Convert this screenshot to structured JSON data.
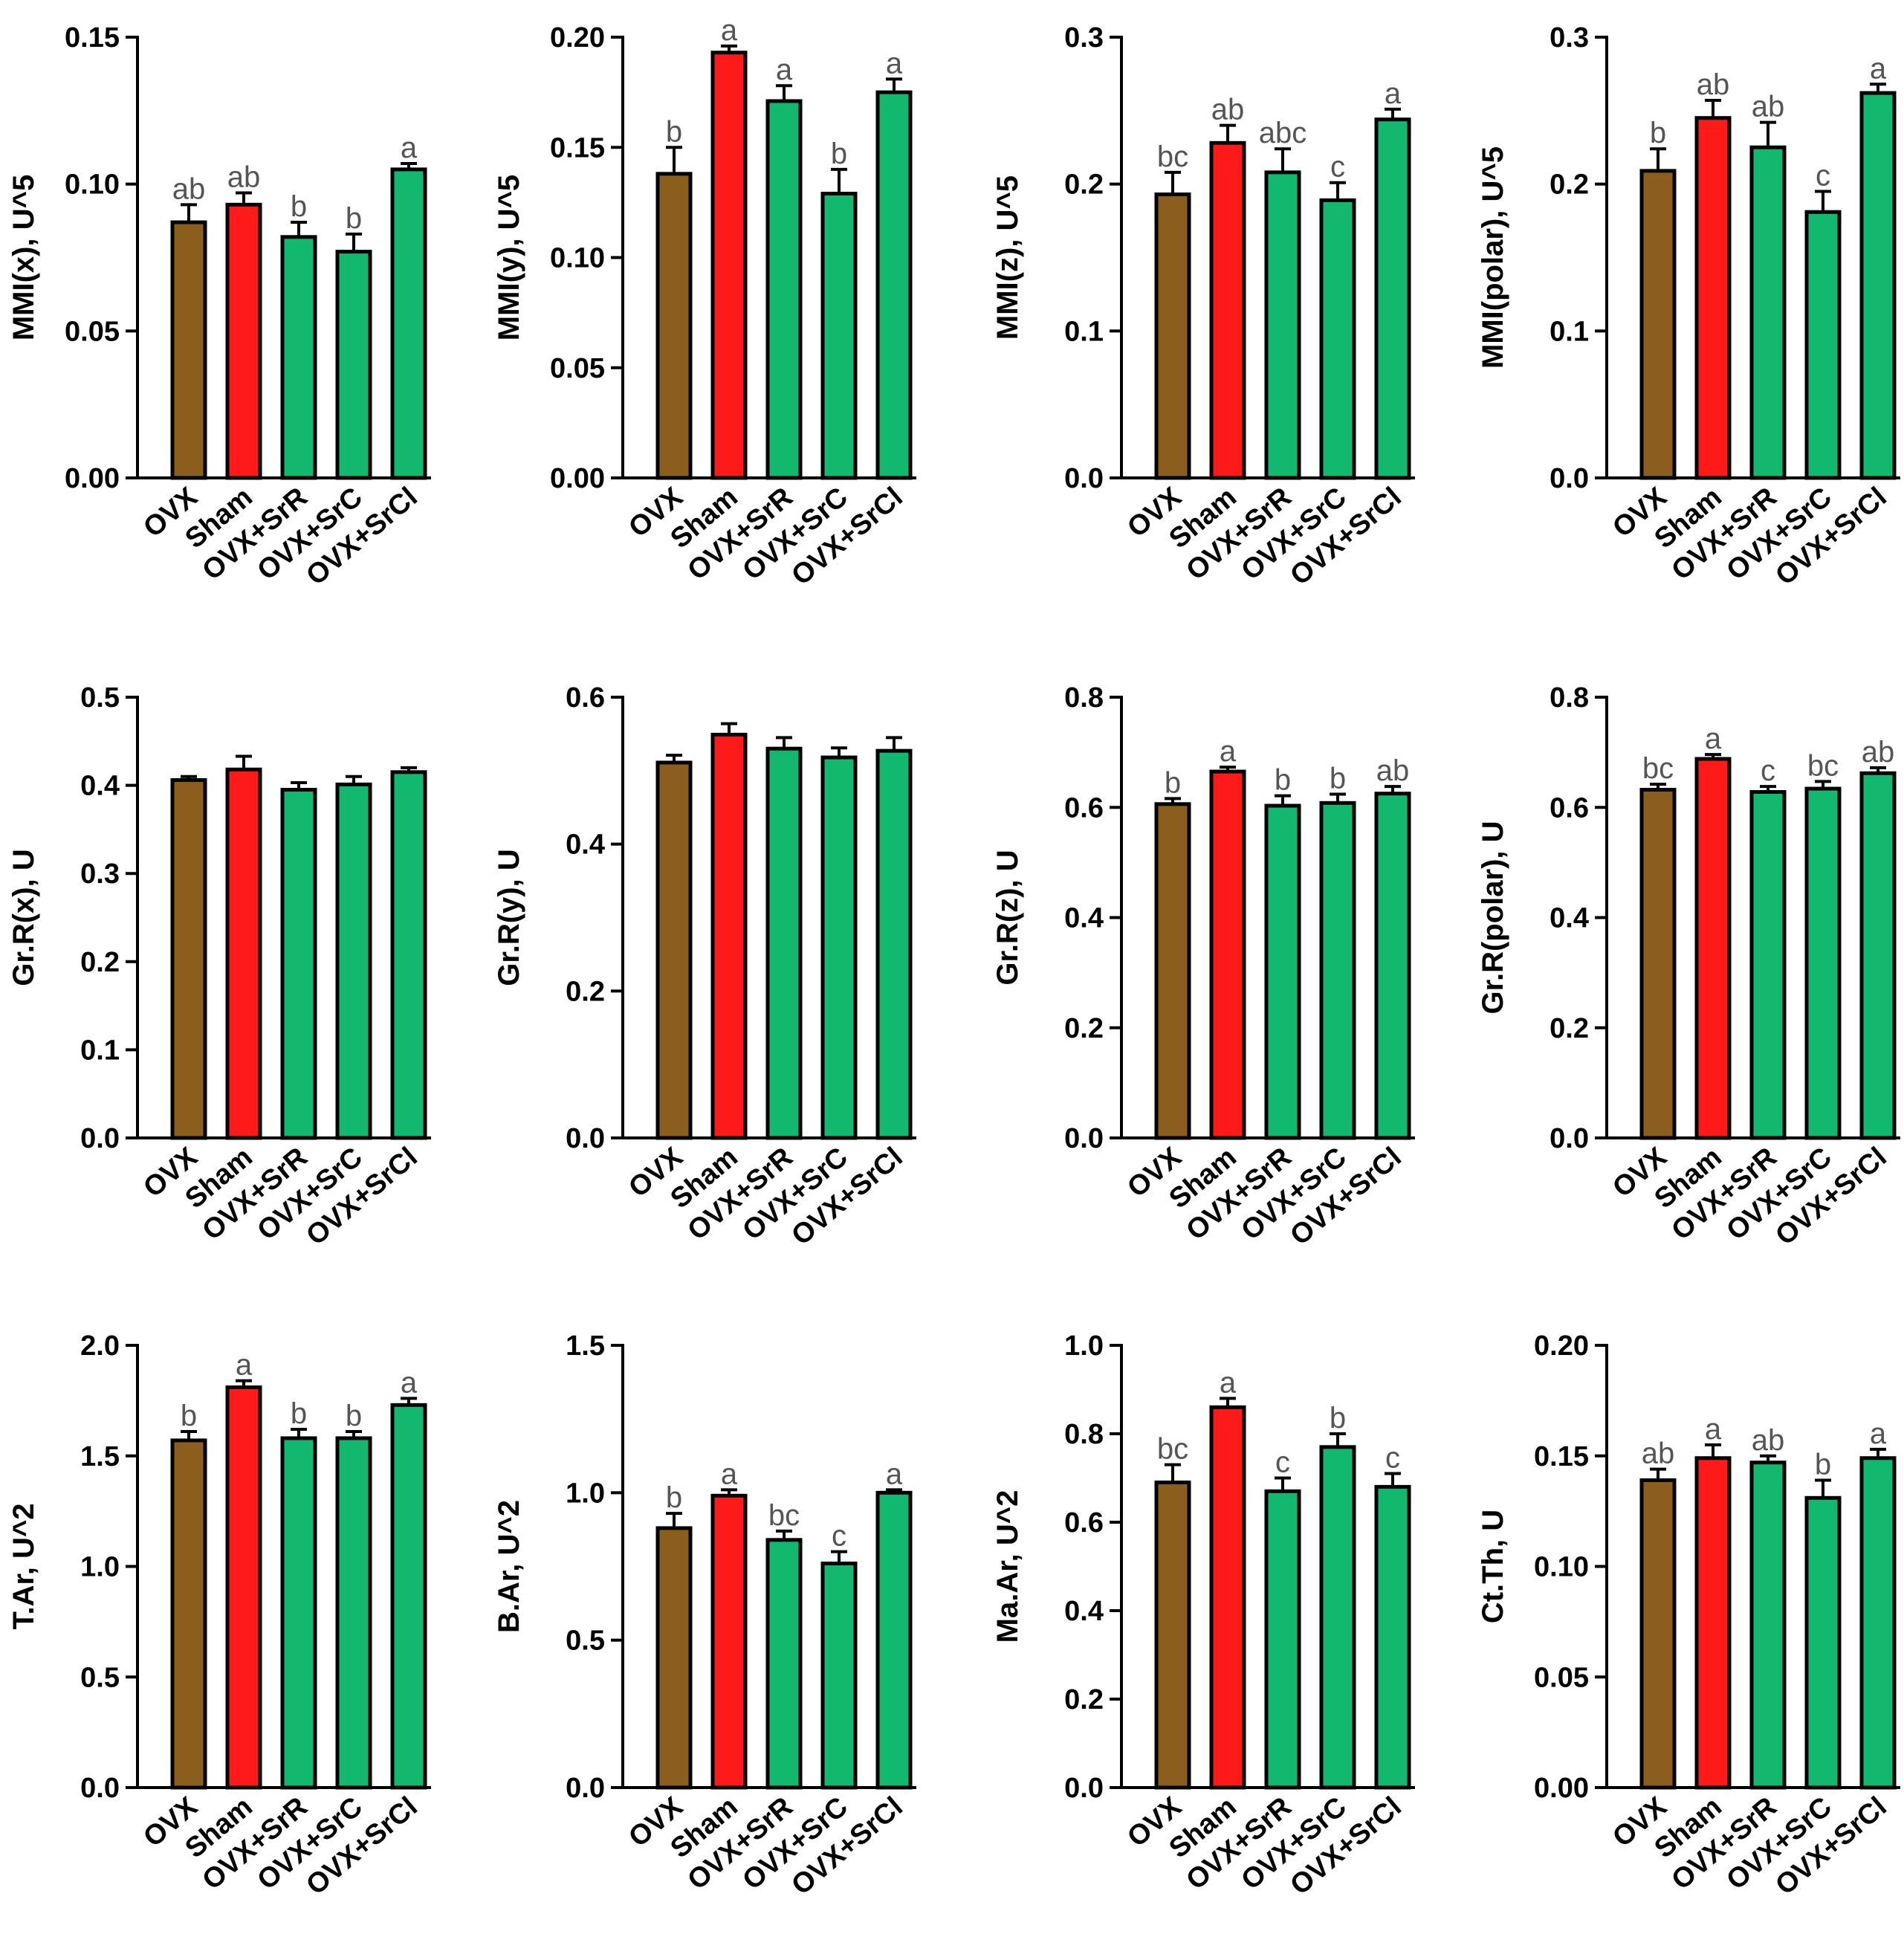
{
  "colors": {
    "OVX": "#8B5E1E",
    "Sham": "#FF1A1A",
    "green": "#12B86E",
    "axis": "#000000",
    "letter": "#555555"
  },
  "chart_data": [
    {
      "type": "bar",
      "ylabel": "MMI(x), U^5",
      "categories": [
        "OVX",
        "Sham",
        "OVX+SrR",
        "OVX+SrC",
        "OVX+SrCl"
      ],
      "values": [
        0.087,
        0.093,
        0.082,
        0.077,
        0.105
      ],
      "errors": [
        0.006,
        0.004,
        0.005,
        0.006,
        0.002
      ],
      "letters": [
        "ab",
        "ab",
        "b",
        "b",
        "a"
      ],
      "ylim": [
        0,
        0.15
      ],
      "ticks": [
        0,
        0.05,
        0.1,
        0.15
      ],
      "tick_labels": [
        "0.00",
        "0.05",
        "0.10",
        "0.15"
      ]
    },
    {
      "type": "bar",
      "ylabel": "MMI(y), U^5",
      "categories": [
        "OVX",
        "Sham",
        "OVX+SrR",
        "OVX+SrC",
        "OVX+SrCl"
      ],
      "values": [
        0.138,
        0.193,
        0.171,
        0.129,
        0.175
      ],
      "errors": [
        0.012,
        0.003,
        0.007,
        0.011,
        0.006
      ],
      "letters": [
        "b",
        "a",
        "a",
        "b",
        "a"
      ],
      "ylim": [
        0,
        0.2
      ],
      "ticks": [
        0,
        0.05,
        0.1,
        0.15,
        0.2
      ],
      "tick_labels": [
        "0.00",
        "0.05",
        "0.10",
        "0.15",
        "0.20"
      ]
    },
    {
      "type": "bar",
      "ylabel": "MMI(z), U^5",
      "categories": [
        "OVX",
        "Sham",
        "OVX+SrR",
        "OVX+SrC",
        "OVX+SrCl"
      ],
      "values": [
        0.193,
        0.228,
        0.208,
        0.189,
        0.244
      ],
      "errors": [
        0.015,
        0.012,
        0.016,
        0.012,
        0.007
      ],
      "letters": [
        "bc",
        "ab",
        "abc",
        "c",
        "a"
      ],
      "ylim": [
        0,
        0.3
      ],
      "ticks": [
        0,
        0.1,
        0.2,
        0.3
      ],
      "tick_labels": [
        "0.0",
        "0.1",
        "0.2",
        "0.3"
      ]
    },
    {
      "type": "bar",
      "ylabel": "MMI(polar), U^5",
      "categories": [
        "OVX",
        "Sham",
        "OVX+SrR",
        "OVX+SrC",
        "OVX+SrCl"
      ],
      "values": [
        0.209,
        0.245,
        0.225,
        0.181,
        0.262
      ],
      "errors": [
        0.015,
        0.012,
        0.017,
        0.014,
        0.006
      ],
      "letters": [
        "b",
        "ab",
        "ab",
        "c",
        "a"
      ],
      "ylim": [
        0,
        0.3
      ],
      "ticks": [
        0,
        0.1,
        0.2,
        0.3
      ],
      "tick_labels": [
        "0.0",
        "0.1",
        "0.2",
        "0.3"
      ]
    },
    {
      "type": "bar",
      "ylabel": "Gr.R(x), U",
      "categories": [
        "OVX",
        "Sham",
        "OVX+SrR",
        "OVX+SrC",
        "OVX+SrCl"
      ],
      "values": [
        0.406,
        0.418,
        0.395,
        0.401,
        0.415
      ],
      "errors": [
        0.004,
        0.015,
        0.008,
        0.009,
        0.005
      ],
      "letters": [
        "",
        "",
        "",
        "",
        ""
      ],
      "ylim": [
        0,
        0.5
      ],
      "ticks": [
        0,
        0.1,
        0.2,
        0.3,
        0.4,
        0.5
      ],
      "tick_labels": [
        "0.0",
        "0.1",
        "0.2",
        "0.3",
        "0.4",
        "0.5"
      ]
    },
    {
      "type": "bar",
      "ylabel": "Gr.R(y), U",
      "categories": [
        "OVX",
        "Sham",
        "OVX+SrR",
        "OVX+SrC",
        "OVX+SrCl"
      ],
      "values": [
        0.511,
        0.549,
        0.53,
        0.518,
        0.527
      ],
      "errors": [
        0.01,
        0.015,
        0.015,
        0.013,
        0.018
      ],
      "letters": [
        "",
        "",
        "",
        "",
        ""
      ],
      "ylim": [
        0,
        0.6
      ],
      "ticks": [
        0,
        0.2,
        0.4,
        0.6
      ],
      "tick_labels": [
        "0.0",
        "0.2",
        "0.4",
        "0.6"
      ]
    },
    {
      "type": "bar",
      "ylabel": "Gr.R(z), U",
      "categories": [
        "OVX",
        "Sham",
        "OVX+SrR",
        "OVX+SrC",
        "OVX+SrCl"
      ],
      "values": [
        0.606,
        0.665,
        0.603,
        0.608,
        0.625
      ],
      "errors": [
        0.01,
        0.008,
        0.018,
        0.016,
        0.013
      ],
      "letters": [
        "b",
        "a",
        "b",
        "b",
        "ab"
      ],
      "ylim": [
        0,
        0.8
      ],
      "ticks": [
        0,
        0.2,
        0.4,
        0.6,
        0.8
      ],
      "tick_labels": [
        "0.0",
        "0.2",
        "0.4",
        "0.6",
        "0.8"
      ]
    },
    {
      "type": "bar",
      "ylabel": "Gr.R(polar), U",
      "categories": [
        "OVX",
        "Sham",
        "OVX+SrR",
        "OVX+SrC",
        "OVX+SrCl"
      ],
      "values": [
        0.632,
        0.688,
        0.628,
        0.634,
        0.662
      ],
      "errors": [
        0.01,
        0.008,
        0.01,
        0.013,
        0.01
      ],
      "letters": [
        "bc",
        "a",
        "c",
        "bc",
        "ab"
      ],
      "ylim": [
        0,
        0.8
      ],
      "ticks": [
        0,
        0.2,
        0.4,
        0.6,
        0.8
      ],
      "tick_labels": [
        "0.0",
        "0.2",
        "0.4",
        "0.6",
        "0.8"
      ]
    },
    {
      "type": "bar",
      "ylabel": "T.Ar, U^2",
      "categories": [
        "OVX",
        "Sham",
        "OVX+SrR",
        "OVX+SrC",
        "OVX+SrCl"
      ],
      "values": [
        1.57,
        1.81,
        1.58,
        1.58,
        1.73
      ],
      "errors": [
        0.04,
        0.03,
        0.04,
        0.03,
        0.03
      ],
      "letters": [
        "b",
        "a",
        "b",
        "b",
        "a"
      ],
      "ylim": [
        0,
        2.0
      ],
      "ticks": [
        0,
        0.5,
        1.0,
        1.5,
        2.0
      ],
      "tick_labels": [
        "0.0",
        "0.5",
        "1.0",
        "1.5",
        "2.0"
      ]
    },
    {
      "type": "bar",
      "ylabel": "B.Ar, U^2",
      "categories": [
        "OVX",
        "Sham",
        "OVX+SrR",
        "OVX+SrC",
        "OVX+SrCl"
      ],
      "values": [
        0.88,
        0.99,
        0.84,
        0.76,
        1.0
      ],
      "errors": [
        0.05,
        0.02,
        0.03,
        0.04,
        0.01
      ],
      "letters": [
        "b",
        "a",
        "bc",
        "c",
        "a"
      ],
      "ylim": [
        0,
        1.5
      ],
      "ticks": [
        0,
        0.5,
        1.0,
        1.5
      ],
      "tick_labels": [
        "0.0",
        "0.5",
        "1.0",
        "1.5"
      ]
    },
    {
      "type": "bar",
      "ylabel": "Ma.Ar, U^2",
      "categories": [
        "OVX",
        "Sham",
        "OVX+SrR",
        "OVX+SrC",
        "OVX+SrCl"
      ],
      "values": [
        0.69,
        0.86,
        0.67,
        0.77,
        0.68
      ],
      "errors": [
        0.04,
        0.02,
        0.03,
        0.03,
        0.03
      ],
      "letters": [
        "bc",
        "a",
        "c",
        "b",
        "c"
      ],
      "ylim": [
        0,
        1.0
      ],
      "ticks": [
        0,
        0.2,
        0.4,
        0.6,
        0.8,
        1.0
      ],
      "tick_labels": [
        "0.0",
        "0.2",
        "0.4",
        "0.6",
        "0.8",
        "1.0"
      ]
    },
    {
      "type": "bar",
      "ylabel": "Ct.Th, U",
      "categories": [
        "OVX",
        "Sham",
        "OVX+SrR",
        "OVX+SrC",
        "OVX+SrCl"
      ],
      "values": [
        0.139,
        0.149,
        0.147,
        0.131,
        0.149
      ],
      "errors": [
        0.005,
        0.006,
        0.003,
        0.008,
        0.004
      ],
      "letters": [
        "ab",
        "a",
        "ab",
        "b",
        "a"
      ],
      "ylim": [
        0,
        0.2
      ],
      "ticks": [
        0,
        0.05,
        0.1,
        0.15,
        0.2
      ],
      "tick_labels": [
        "0.00",
        "0.05",
        "0.10",
        "0.15",
        "0.20"
      ]
    }
  ]
}
